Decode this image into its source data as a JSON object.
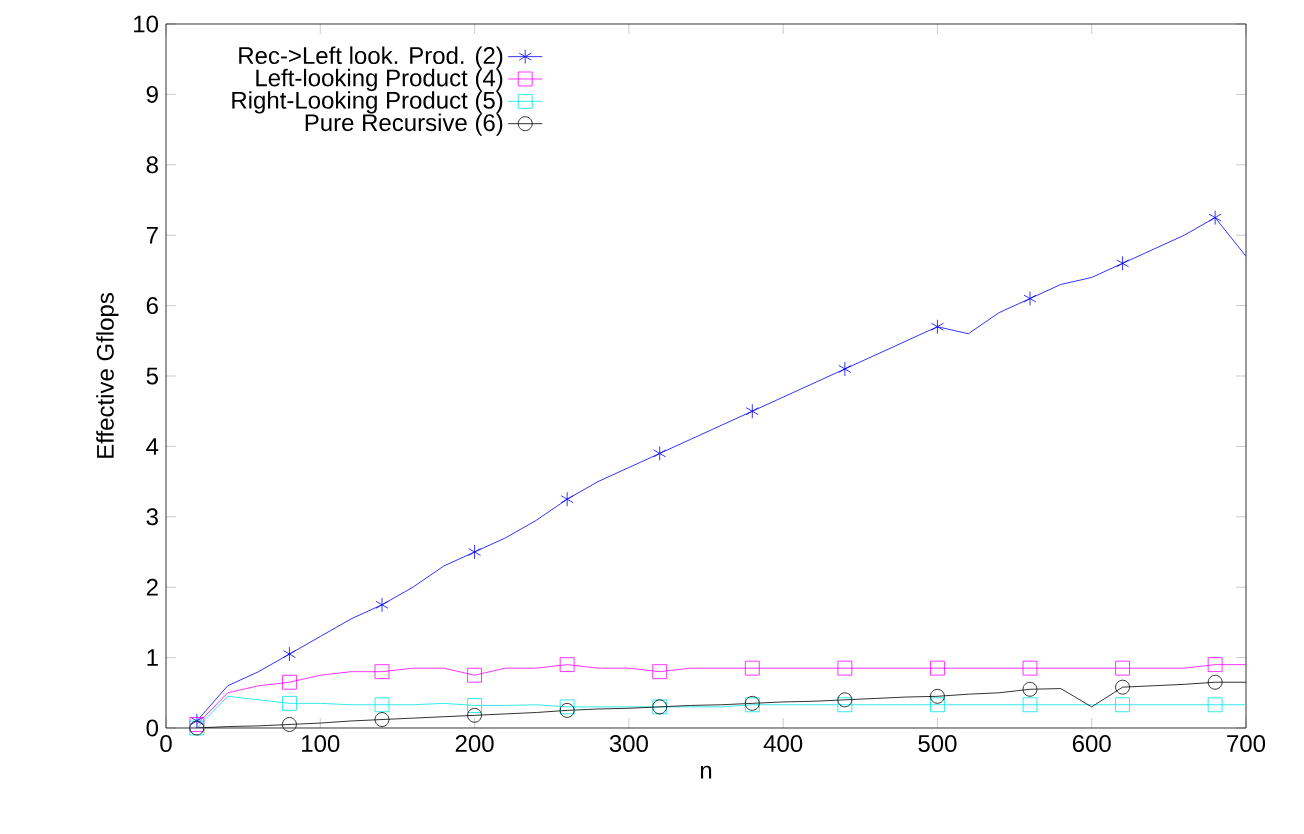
{
  "chart_data": {
    "type": "line",
    "xlabel": "n",
    "ylabel": "Effective Gflops",
    "x": [
      20,
      40,
      60,
      80,
      100,
      120,
      140,
      160,
      180,
      200,
      220,
      240,
      260,
      280,
      300,
      320,
      340,
      360,
      380,
      400,
      420,
      440,
      460,
      480,
      500,
      520,
      540,
      560,
      580,
      600,
      620,
      640,
      660,
      680,
      700
    ],
    "series": [
      {
        "name": "Rec->Left look. Prod. (2)",
        "color": "#0000ff",
        "values": [
          0.1,
          0.6,
          0.8,
          1.05,
          1.3,
          1.55,
          1.75,
          2.0,
          2.3,
          2.5,
          2.7,
          2.95,
          3.25,
          3.5,
          3.7,
          3.9,
          4.1,
          4.3,
          4.5,
          4.7,
          4.9,
          5.1,
          5.3,
          5.5,
          5.7,
          5.6,
          5.9,
          6.1,
          6.3,
          6.4,
          6.6,
          6.8,
          7.0,
          7.25,
          6.7
        ]
      },
      {
        "type": "scatter",
        "color": "#0000ff",
        "marker": "cross",
        "x": [
          20,
          80,
          140,
          200,
          260,
          320,
          380,
          440,
          500,
          560,
          620,
          680
        ],
        "values": [
          0.1,
          1.05,
          1.75,
          2.5,
          3.25,
          3.9,
          4.5,
          5.1,
          5.7,
          6.1,
          6.6,
          7.25
        ]
      },
      {
        "name": "Left-looking Product (4)",
        "color": "#ff00ff",
        "values": [
          0.05,
          0.5,
          0.6,
          0.65,
          0.75,
          0.8,
          0.8,
          0.85,
          0.85,
          0.75,
          0.85,
          0.85,
          0.9,
          0.85,
          0.85,
          0.8,
          0.85,
          0.85,
          0.85,
          0.85,
          0.85,
          0.85,
          0.85,
          0.85,
          0.85,
          0.85,
          0.85,
          0.85,
          0.85,
          0.85,
          0.85,
          0.85,
          0.85,
          0.9,
          0.9
        ]
      },
      {
        "type": "scatter",
        "color": "#ff00ff",
        "marker": "square",
        "x": [
          20,
          80,
          140,
          200,
          260,
          320,
          380,
          440,
          500,
          560,
          620,
          680
        ],
        "values": [
          0.05,
          0.65,
          0.8,
          0.75,
          0.9,
          0.8,
          0.85,
          0.85,
          0.85,
          0.85,
          0.85,
          0.9
        ]
      },
      {
        "name": "Right-Looking Product (5)",
        "color": "#00e5e5",
        "values": [
          0.0,
          0.45,
          0.4,
          0.35,
          0.35,
          0.33,
          0.33,
          0.33,
          0.35,
          0.32,
          0.32,
          0.33,
          0.3,
          0.3,
          0.3,
          0.3,
          0.3,
          0.3,
          0.33,
          0.33,
          0.33,
          0.33,
          0.33,
          0.33,
          0.33,
          0.33,
          0.33,
          0.33,
          0.33,
          0.33,
          0.33,
          0.33,
          0.33,
          0.33,
          0.33
        ]
      },
      {
        "type": "scatter",
        "color": "#00e5e5",
        "marker": "square",
        "x": [
          20,
          80,
          140,
          200,
          260,
          320,
          380,
          440,
          500,
          560,
          620,
          680
        ],
        "values": [
          0.0,
          0.35,
          0.33,
          0.32,
          0.3,
          0.3,
          0.33,
          0.33,
          0.33,
          0.33,
          0.33,
          0.33
        ]
      },
      {
        "name": "Pure Recursive (6)",
        "color": "#000000",
        "values": [
          0.0,
          0.02,
          0.03,
          0.05,
          0.07,
          0.1,
          0.12,
          0.14,
          0.16,
          0.18,
          0.2,
          0.22,
          0.25,
          0.27,
          0.28,
          0.3,
          0.32,
          0.33,
          0.35,
          0.37,
          0.38,
          0.4,
          0.42,
          0.44,
          0.45,
          0.48,
          0.5,
          0.55,
          0.56,
          0.3,
          0.58,
          0.6,
          0.62,
          0.65,
          0.65
        ]
      },
      {
        "type": "scatter",
        "color": "#000000",
        "marker": "circle",
        "x": [
          20,
          80,
          140,
          200,
          260,
          320,
          380,
          440,
          500,
          560,
          620,
          680
        ],
        "values": [
          0.0,
          0.05,
          0.12,
          0.18,
          0.25,
          0.3,
          0.35,
          0.4,
          0.45,
          0.55,
          0.58,
          0.65
        ]
      }
    ],
    "xlim": [
      0,
      700
    ],
    "ylim": [
      0,
      10
    ],
    "xticks": [
      0,
      100,
      200,
      300,
      400,
      500,
      600,
      700
    ],
    "yticks": [
      0,
      1,
      2,
      3,
      4,
      5,
      6,
      7,
      8,
      9,
      10
    ],
    "legend": "top left"
  }
}
